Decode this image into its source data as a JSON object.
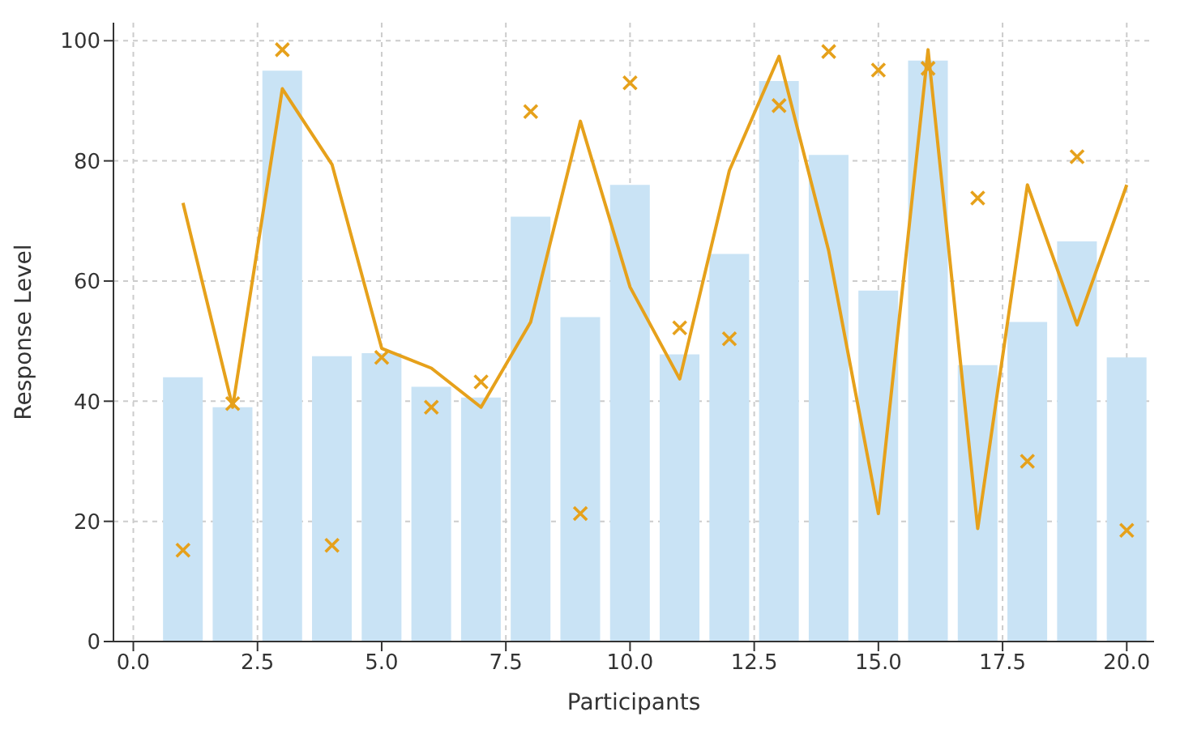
{
  "chart_data": {
    "type": "bar",
    "xlabel": "Participants",
    "ylabel": "Response Level",
    "x": [
      1,
      2,
      3,
      4,
      5,
      6,
      7,
      8,
      9,
      10,
      11,
      12,
      13,
      14,
      15,
      16,
      17,
      18,
      19,
      20
    ],
    "series": [
      {
        "color": "#c9e3f5",
        "values": [
          44,
          39,
          95,
          47.5,
          48,
          42.4,
          40.6,
          70.7,
          54,
          76,
          47.8,
          64.5,
          93.3,
          81,
          58.4,
          96.7,
          46,
          53.2,
          66.6,
          47.3
        ]
      },
      {
        "type": "line",
        "color": "#e6a11b",
        "marker": "none",
        "values": [
          73,
          39,
          92,
          79.4,
          48.8,
          45.5,
          39,
          53.2,
          86.6,
          59,
          43.7,
          78.4,
          97.4,
          65,
          21.3,
          98.5,
          18.8,
          76,
          52.7,
          76
        ]
      },
      {
        "type": "scatter",
        "color": "#e6a11b",
        "marker": "cross",
        "values": [
          15.2,
          39.6,
          98.5,
          16,
          47.3,
          39,
          43.2,
          88.2,
          21.3,
          93,
          52.2,
          50.4,
          89.2,
          98.2,
          95.1,
          95.4,
          73.8,
          30,
          80.7,
          18.5
        ]
      }
    ],
    "xlim": [
      -0.4,
      20.55
    ],
    "xticks": [
      {
        "value": 0,
        "label": "0.0"
      },
      {
        "value": 2.5,
        "label": "2.5"
      },
      {
        "value": 5,
        "label": "5.0"
      },
      {
        "value": 7.5,
        "label": "7.5"
      },
      {
        "value": 10,
        "label": "10.0"
      },
      {
        "value": 12.5,
        "label": "12.5"
      },
      {
        "value": 15,
        "label": "15.0"
      },
      {
        "value": 17.5,
        "label": "17.5"
      },
      {
        "value": 20,
        "label": "20.0"
      }
    ],
    "ylim": [
      0,
      103
    ],
    "yticks": [
      0,
      20,
      40,
      60,
      80,
      100
    ],
    "grid": true,
    "legend": false
  }
}
